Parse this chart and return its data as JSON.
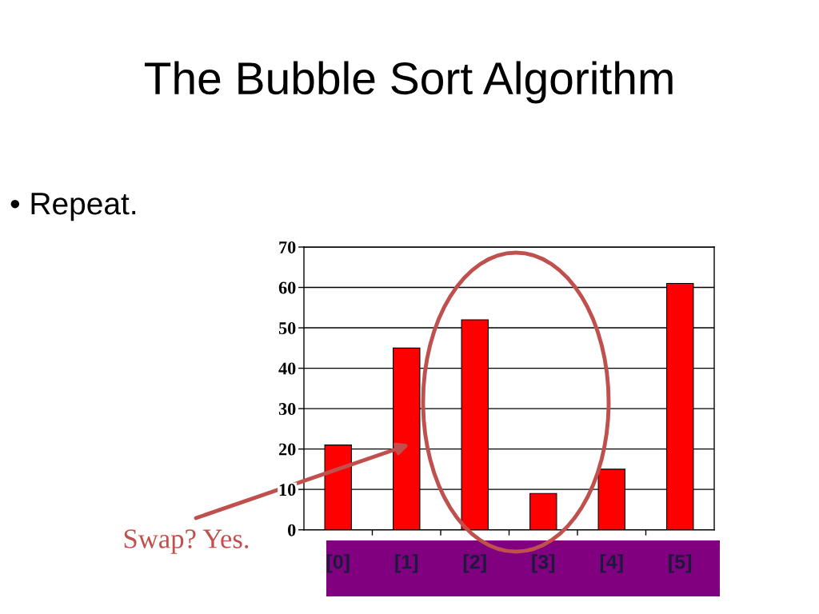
{
  "chart_data": {
    "type": "bar",
    "title": "The Bubble Sort Algorithm",
    "subtitle": "• Repeat.",
    "categories": [
      "[0]",
      "[1]",
      "[2]",
      "[3]",
      "[4]",
      "[5]"
    ],
    "values": [
      21,
      45,
      52,
      9,
      15,
      61
    ],
    "color": "#ff0000",
    "ylim": [
      0,
      70
    ],
    "yticks": [
      0,
      10,
      20,
      30,
      40,
      50,
      60,
      70
    ],
    "grid": "y",
    "annotations": [
      "Swap? Yes."
    ]
  }
}
